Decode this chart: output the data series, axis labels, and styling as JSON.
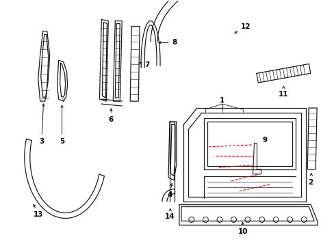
{
  "background_color": "#ffffff",
  "line_color": "#1a1a1a",
  "red_dashed_color": "#ff0000",
  "label_color": "#000000",
  "fig_width": 4.89,
  "fig_height": 3.6,
  "dpi": 100
}
